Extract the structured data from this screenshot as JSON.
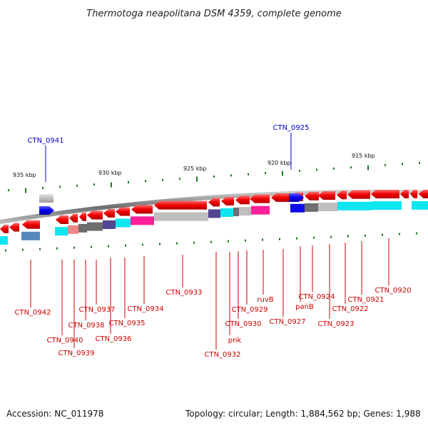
{
  "title": "Thermotoga neapolitana DSM 4359, complete genome",
  "footer": {
    "accession": "Accession: NC_011978",
    "summary": "Topology: circular; Length: 1,884,562 bp; Genes: 1,988"
  },
  "scale_labels": [
    "935 kbp",
    "930 kbp",
    "925 kbp",
    "920 kbp",
    "915 kbp"
  ],
  "top_labels": [
    "CTN_0941",
    "CTN_0925"
  ],
  "bottom_labels": [
    "CTN_0942",
    "CTN_0940",
    "CTN_0939",
    "CTN_0938",
    "CTN_0937",
    "CTN_0936",
    "CTN_0935",
    "CTN_0934",
    "CTN_0933",
    "CTN_0932",
    "pnk",
    "CTN_0930",
    "CTN_0929",
    "ruvB",
    "CTN_0927",
    "panB",
    "CTN_0924",
    "CTN_0923",
    "CTN_0922",
    "CTN_0921",
    "CTN_0920"
  ],
  "colors": {
    "forward_gene": "#0000ee",
    "reverse_gene": "#ee0000",
    "backbone": "#888888",
    "label_red": "#cc0000",
    "label_blue": "#0000cc",
    "tick": "#227722",
    "cyan": "#00e5ee",
    "magenta": "#ff1493",
    "steelblue": "#4a82b8",
    "salmon": "#f08080",
    "indigo": "#483d8b",
    "dimgray": "#666666",
    "lightgray": "#bbbbbb"
  }
}
